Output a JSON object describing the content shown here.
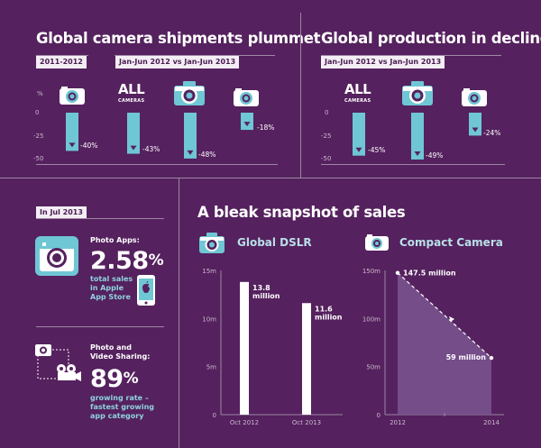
{
  "left_header": "Global camera shipments plummet",
  "right_header": "Global production in decline",
  "tag_2011": "2011-2012",
  "tag_jan": "Jan-Jun 2012 vs Jan-Jun 2013",
  "pct_unit": "%",
  "all_label": "ALL",
  "cameras_label": "CAMERAS",
  "axis_labels": [
    "0",
    "-25",
    "-50"
  ],
  "shipments": {
    "compact_2011_2012": "-40%",
    "all_cameras": "-43%",
    "dslr": "-48%",
    "compact": "-18%"
  },
  "production": {
    "all_cameras": "-45%",
    "dslr": "-49%",
    "compact": "-24%"
  },
  "jul_tag": "In Jul 2013",
  "photo_apps": {
    "title": "Photo Apps:",
    "value": "2.58",
    "unit": "%",
    "line1": "total sales",
    "line2": "in Apple",
    "line3": "App Store"
  },
  "sharing": {
    "title1": "Photo and",
    "title2": "Video Sharing:",
    "value": "89",
    "unit": "%",
    "line1": "growing rate –",
    "line2": "fastest growing",
    "line3": "app category"
  },
  "sales_header": "A bleak snapshot of sales",
  "dslr_title": "Global DSLR",
  "compact_title": "Compact Camera",
  "colors": {
    "bg": "#55215e",
    "teal": "#6fc6d4",
    "panel_line": "#9d86a4",
    "area": "#7a5590"
  },
  "chart_data": [
    {
      "type": "bar",
      "title": "Global camera shipments plummet",
      "ylabel": "%",
      "ylim": [
        -50,
        0
      ],
      "categories": [
        "Compact 2011-2012",
        "All cameras",
        "DSLR",
        "Compact"
      ],
      "values": [
        -40,
        -43,
        -48,
        -18
      ]
    },
    {
      "type": "bar",
      "title": "Global production in decline",
      "ylabel": "%",
      "ylim": [
        -50,
        0
      ],
      "categories": [
        "All cameras",
        "DSLR",
        "Compact"
      ],
      "values": [
        -45,
        -49,
        -24
      ]
    },
    {
      "type": "bar",
      "title": "Global DSLR",
      "categories": [
        "Oct 2012",
        "Oct 2013"
      ],
      "values": [
        13.8,
        11.6
      ],
      "labels": [
        "13.8 million",
        "11.6 million"
      ],
      "yticks": [
        "0",
        "5m",
        "10m",
        "15m"
      ],
      "ylim": [
        0,
        15
      ]
    },
    {
      "type": "area",
      "title": "Compact Camera",
      "x": [
        "2012",
        "2014"
      ],
      "values": [
        147.5,
        59
      ],
      "labels": [
        "147.5 million",
        "59 million"
      ],
      "yticks": [
        "0",
        "50m",
        "100m",
        "150m"
      ],
      "ylim": [
        0,
        150
      ]
    }
  ]
}
